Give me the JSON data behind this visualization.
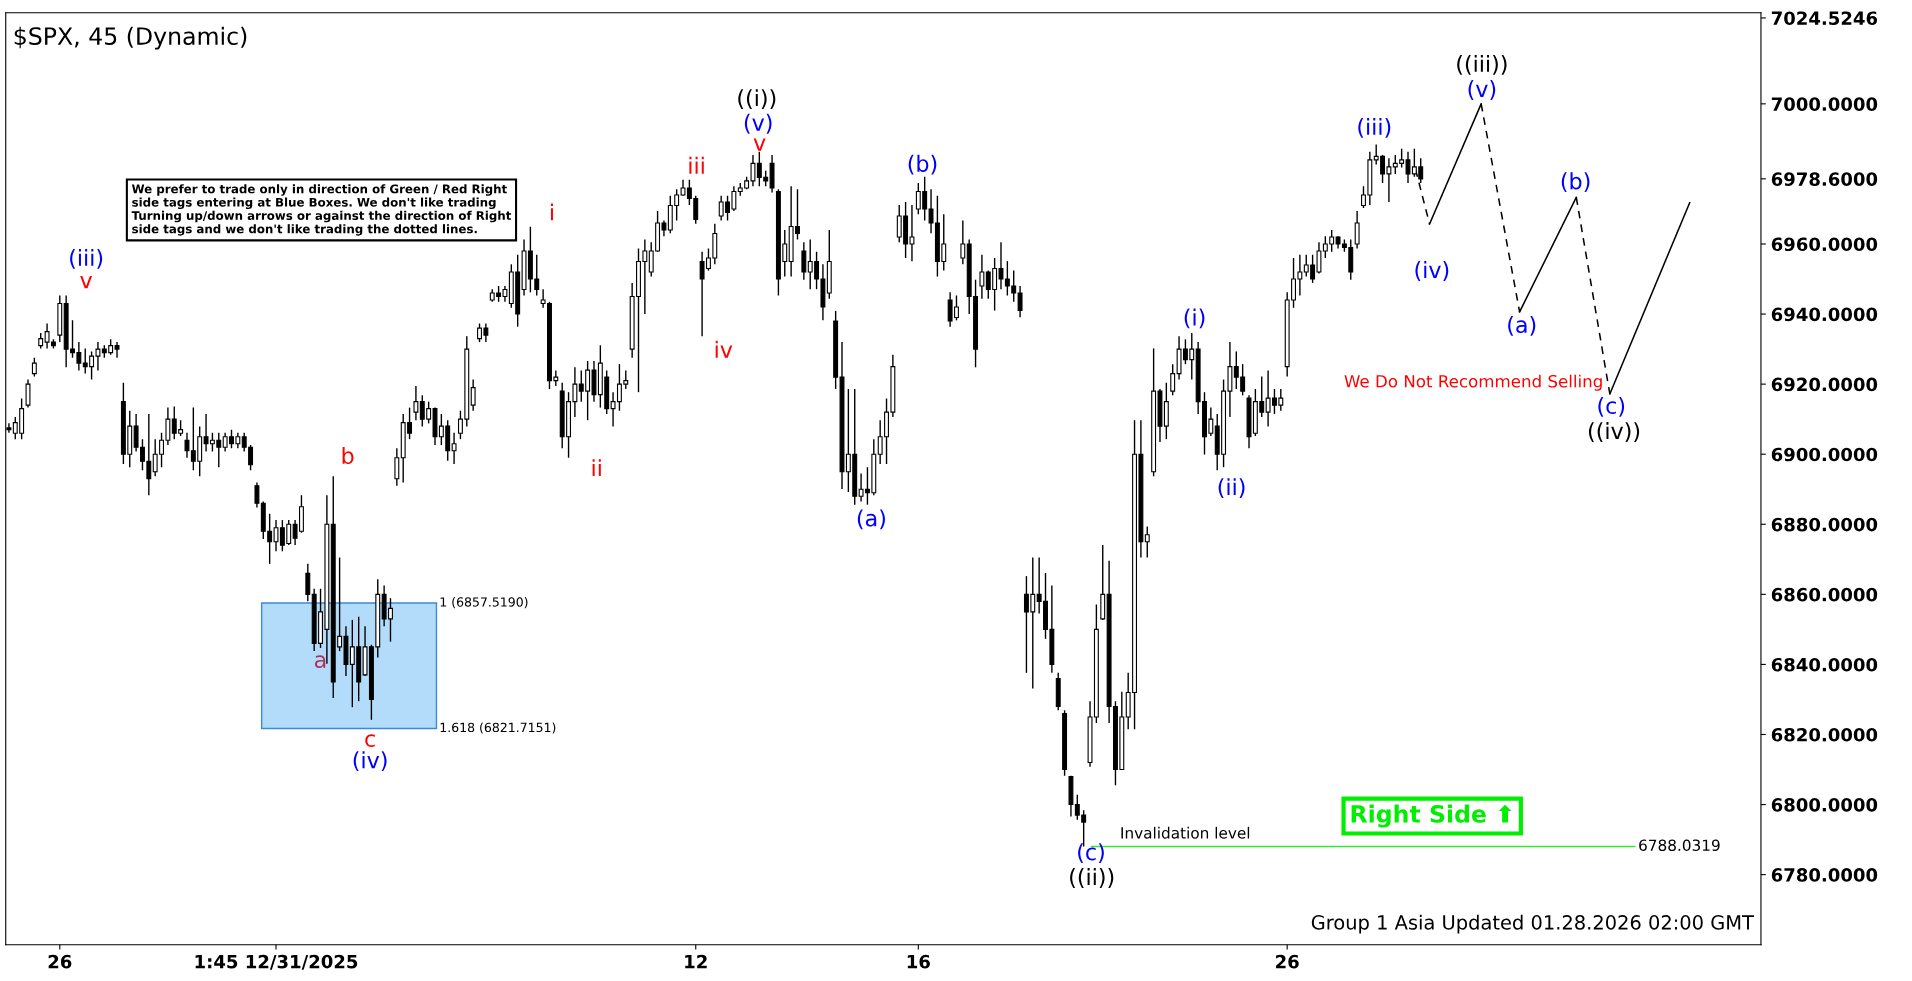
{
  "chart_data": {
    "type": "candlestick",
    "title": "$SPX, 45 (Dynamic)",
    "categories": [
      null,
      null,
      null,
      null,
      null,
      null,
      null,
      null,
      "26",
      null,
      null,
      null,
      null,
      null,
      null,
      null,
      null,
      null,
      null,
      null,
      null,
      null,
      null,
      null,
      null,
      null,
      null,
      null,
      null,
      null,
      null,
      null,
      null,
      null,
      null,
      null,
      null,
      null,
      null,
      null,
      null,
      null,
      "1:45 12/31/2025",
      null,
      null,
      null,
      null,
      null,
      null,
      null,
      null,
      null,
      null,
      null,
      null,
      null,
      null,
      null,
      null,
      null,
      null,
      null,
      null,
      null,
      null,
      null,
      null,
      null,
      null,
      null,
      null,
      null,
      null,
      null,
      null,
      null,
      null,
      null,
      null,
      null,
      null,
      null,
      null,
      null,
      null,
      null,
      null,
      null,
      null,
      null,
      null,
      null,
      null,
      null,
      null,
      null,
      null,
      null,
      null,
      null,
      null,
      null,
      null,
      null,
      null,
      null,
      null,
      null,
      "12",
      null,
      null,
      null,
      null,
      null,
      null,
      null,
      null,
      null,
      null,
      null,
      null,
      null,
      null,
      null,
      null,
      null,
      null,
      null,
      null,
      null,
      null,
      null,
      null,
      null,
      null,
      null,
      null,
      null,
      null,
      null,
      null,
      null,
      null,
      "16",
      null,
      null,
      null,
      null,
      null,
      null,
      null,
      null,
      null,
      null,
      null,
      null,
      null,
      null,
      null,
      null,
      null,
      null,
      null,
      null,
      null,
      null,
      null,
      null,
      null,
      null,
      null,
      null,
      null,
      null,
      null,
      null,
      null,
      null,
      null,
      null,
      null,
      null,
      null,
      null,
      null,
      null,
      null,
      null,
      null,
      null,
      null,
      null,
      null,
      null,
      null,
      null,
      null,
      null,
      null,
      null,
      null,
      "26",
      null,
      null,
      null,
      null,
      null,
      null,
      null,
      null,
      null,
      null,
      null,
      null,
      null,
      null,
      null,
      null,
      null,
      null,
      null,
      null,
      null,
      null,
      null,
      null,
      null,
      null,
      null,
      null,
      null,
      null,
      null,
      null,
      null,
      null,
      null,
      null,
      null,
      null,
      null,
      null,
      null,
      null,
      null,
      null,
      null,
      null,
      null,
      null,
      null,
      null,
      null,
      null,
      null,
      null,
      null,
      null,
      null,
      null,
      null,
      null,
      null,
      null,
      null,
      null,
      null,
      null,
      null,
      null,
      null,
      null,
      null,
      null,
      null,
      null
    ],
    "ohlc": [
      [
        6907.5,
        6908.8,
        6906.1,
        6907.0
      ],
      [
        6906.0,
        6910.6,
        6904.3,
        6909.0
      ],
      [
        6906.0,
        6915.9,
        6904.3,
        6913.0
      ],
      [
        6914.0,
        6921.3,
        6913.3,
        6920.0
      ],
      [
        6923.0,
        6927.5,
        6922.2,
        6926.0
      ],
      [
        6931.0,
        6934.6,
        6930.2,
        6933.0
      ],
      [
        6932.0,
        6937.3,
        6930.2,
        6935.0
      ],
      [
        6932.0,
        6932.8,
        6930.2,
        6931.0
      ],
      [
        6934.0,
        6945.3,
        6932.0,
        6943.0
      ],
      [
        6943.0,
        6945.3,
        6924.8,
        6930.0
      ],
      [
        6930.0,
        6938.2,
        6927.5,
        6929.0
      ],
      [
        6929.0,
        6932.0,
        6923.9,
        6926.0
      ],
      [
        6926.0,
        6930.2,
        6923.0,
        6925.0
      ],
      [
        6925.0,
        6929.3,
        6921.3,
        6928.0
      ],
      [
        6928.0,
        6932.0,
        6923.9,
        6930.0
      ],
      [
        6930.0,
        6931.1,
        6927.5,
        6929.0
      ],
      [
        6929.0,
        6932.8,
        6928.4,
        6931.0
      ],
      [
        6931.0,
        6932.0,
        6927.5,
        6930.0
      ],
      [
        6915.0,
        6920.4,
        6897.2,
        6900.0
      ],
      [
        6900.0,
        6912.4,
        6896.3,
        6908.0
      ],
      [
        6908.0,
        6911.5,
        6900.8,
        6902.0
      ],
      [
        6902.0,
        6904.3,
        6895.4,
        6898.0
      ],
      [
        6898.0,
        6911.5,
        6888.3,
        6893.0
      ],
      [
        6895.0,
        6904.3,
        6893.7,
        6900.0
      ],
      [
        6900.0,
        6906.1,
        6896.3,
        6904.0
      ],
      [
        6904.0,
        6913.3,
        6902.6,
        6910.0
      ],
      [
        6910.0,
        6913.6,
        6904.3,
        6906.0
      ],
      [
        6906.0,
        6909.7,
        6905.2,
        6907.0
      ],
      [
        6904.0,
        6906.1,
        6899.0,
        6901.0
      ],
      [
        6901.0,
        6913.3,
        6895.4,
        6898.0
      ],
      [
        6898.0,
        6907.9,
        6893.7,
        6905.0
      ],
      [
        6905.0,
        6911.5,
        6900.8,
        6903.0
      ],
      [
        6903.0,
        6906.1,
        6900.8,
        6904.0
      ],
      [
        6904.0,
        6906.1,
        6896.3,
        6902.0
      ],
      [
        6902.0,
        6906.1,
        6900.8,
        6905.0
      ],
      [
        6905.0,
        6907.0,
        6901.7,
        6903.0
      ],
      [
        6903.0,
        6906.1,
        6901.7,
        6905.0
      ],
      [
        6905.0,
        6906.1,
        6900.8,
        6902.0
      ],
      [
        6902.0,
        6902.6,
        6895.4,
        6897.0
      ],
      [
        6891.0,
        6891.9,
        6884.8,
        6886.0
      ],
      [
        6886.0,
        6886.5,
        6875.8,
        6878.0
      ],
      [
        6878.0,
        6883.0,
        6868.7,
        6875.0
      ],
      [
        6875.0,
        6881.2,
        6872.3,
        6879.0
      ],
      [
        6879.0,
        6881.2,
        6872.3,
        6874.0
      ],
      [
        6874.5,
        6881.2,
        6874.1,
        6880.0
      ],
      [
        6880.0,
        6881.2,
        6874.1,
        6876.0
      ],
      [
        6878.0,
        6888.3,
        6877.6,
        6885.0
      ],
      [
        6866.0,
        6868.7,
        6858.0,
        6860.0
      ],
      [
        6860.0,
        6861.6,
        6843.8,
        6846.0
      ],
      [
        6846.0,
        6861.6,
        6844.7,
        6855.0
      ],
      [
        6850.0,
        6888.3,
        6840.2,
        6880.0
      ],
      [
        6880.0,
        6893.7,
        6830.4,
        6835.0
      ],
      [
        6845.0,
        6870.5,
        6843.8,
        6848.0
      ],
      [
        6848.0,
        6850.9,
        6836.7,
        6840.0
      ],
      [
        6840.0,
        6852.7,
        6827.8,
        6845.0
      ],
      [
        6845.0,
        6853.6,
        6829.5,
        6835.0
      ],
      [
        6837.0,
        6850.9,
        6836.7,
        6845.0
      ],
      [
        6845.0,
        6845.6,
        6824.2,
        6830.0
      ],
      [
        6845.0,
        6864.3,
        6842.0,
        6860.0
      ],
      [
        6860.0,
        6862.5,
        6850.9,
        6853.0
      ],
      [
        6853.0,
        6858.9,
        6846.5,
        6856.0
      ],
      [
        6893.0,
        6901.7,
        6891.0,
        6899.0
      ],
      [
        6899.0,
        6911.5,
        6891.9,
        6909.0
      ],
      [
        6909.0,
        6913.3,
        6904.3,
        6906.0
      ],
      [
        6912.0,
        6919.5,
        6909.7,
        6915.0
      ],
      [
        6915.0,
        6916.8,
        6907.9,
        6910.0
      ],
      [
        6910.0,
        6915.0,
        6908.8,
        6913.0
      ],
      [
        6913.0,
        6913.3,
        6902.6,
        6905.0
      ],
      [
        6905.0,
        6911.5,
        6902.6,
        6908.0
      ],
      [
        6908.0,
        6909.7,
        6898.1,
        6901.0
      ],
      [
        6901.0,
        6906.1,
        6897.2,
        6903.0
      ],
      [
        6906.0,
        6912.4,
        6904.3,
        6910.0
      ],
      [
        6910.0,
        6933.7,
        6907.9,
        6930.0
      ],
      [
        6914.0,
        6921.3,
        6912.4,
        6919.0
      ],
      [
        6933.0,
        6937.3,
        6932.0,
        6936.0
      ],
      [
        6936.0,
        6937.3,
        6932.0,
        6934.0
      ],
      [
        6944.0,
        6947.1,
        6943.5,
        6946.0
      ],
      [
        6946.0,
        6948.0,
        6943.5,
        6945.0
      ],
      [
        6945.0,
        6948.0,
        6943.5,
        6947.0
      ],
      [
        6943.0,
        6954.2,
        6941.8,
        6952.0
      ],
      [
        6952.0,
        6956.9,
        6936.4,
        6940.0
      ],
      [
        6947.0,
        6961.3,
        6945.3,
        6958.0
      ],
      [
        6958.0,
        6964.9,
        6946.2,
        6950.0
      ],
      [
        6950.0,
        6956.9,
        6945.3,
        6947.0
      ],
      [
        6943.0,
        6947.1,
        6941.8,
        6944.0
      ],
      [
        6943.0,
        6943.5,
        6918.6,
        6921.0
      ],
      [
        6921.0,
        6923.9,
        6919.5,
        6922.0
      ],
      [
        6918.0,
        6920.4,
        6901.7,
        6905.0
      ],
      [
        6905.0,
        6917.7,
        6899.0,
        6915.0
      ],
      [
        6915.0,
        6924.8,
        6910.6,
        6920.0
      ],
      [
        6920.0,
        6923.9,
        6915.0,
        6918.0
      ],
      [
        6918.0,
        6926.6,
        6909.7,
        6924.0
      ],
      [
        6924.0,
        6926.6,
        6915.0,
        6917.0
      ],
      [
        6917.0,
        6931.1,
        6913.3,
        6926.0
      ],
      [
        6922.0,
        6923.9,
        6911.5,
        6913.0
      ],
      [
        6913.0,
        6917.7,
        6907.9,
        6915.0
      ],
      [
        6915.0,
        6925.7,
        6912.4,
        6920.0
      ],
      [
        6920.0,
        6923.9,
        6918.6,
        6921.0
      ],
      [
        6930.0,
        6948.9,
        6927.5,
        6945.0
      ],
      [
        6945.0,
        6958.7,
        6917.7,
        6955.0
      ],
      [
        6955.0,
        6961.3,
        6940.0,
        6958.0
      ],
      [
        6952.0,
        6960.5,
        6950.7,
        6958.0
      ],
      [
        6958.0,
        6969.4,
        6957.8,
        6966.0
      ],
      [
        6966.0,
        6966.7,
        6962.2,
        6964.0
      ],
      [
        6964.0,
        6973.8,
        6963.1,
        6971.0
      ],
      [
        6971.0,
        6975.6,
        6966.7,
        6974.0
      ],
      [
        6974.0,
        6978.3,
        6973.8,
        6976.0
      ],
      [
        6976.0,
        6978.3,
        6971.1,
        6973.0
      ],
      [
        6973.0,
        6973.8,
        6965.8,
        6967.0
      ],
      [
        6955.0,
        6957.8,
        6933.7,
        6950.0
      ],
      [
        6953.0,
        6958.7,
        6952.4,
        6956.0
      ],
      [
        6956.0,
        6965.8,
        6954.2,
        6963.0
      ],
      [
        6968.0,
        6973.8,
        6966.7,
        6972.0
      ],
      [
        6972.0,
        6973.8,
        6966.7,
        6969.0
      ],
      [
        6970.0,
        6976.5,
        6969.4,
        6975.0
      ],
      [
        6975.0,
        6977.4,
        6973.8,
        6976.0
      ],
      [
        6976.0,
        6979.2,
        6975.6,
        6978.0
      ],
      [
        6978.0,
        6985.4,
        6976.5,
        6983.0
      ],
      [
        6983.0,
        6986.3,
        6976.5,
        6979.0
      ],
      [
        6979.0,
        6980.9,
        6976.5,
        6978.0
      ],
      [
        6983.0,
        6985.4,
        6974.7,
        6976.0
      ],
      [
        6975.0,
        6975.6,
        6945.3,
        6950.0
      ],
      [
        6955.0,
        6964.0,
        6950.7,
        6960.0
      ],
      [
        6955.0,
        6976.5,
        6950.7,
        6965.0
      ],
      [
        6965.0,
        6975.6,
        6961.3,
        6963.0
      ],
      [
        6958.0,
        6960.5,
        6949.8,
        6952.0
      ],
      [
        6952.0,
        6961.3,
        6947.1,
        6955.0
      ],
      [
        6955.0,
        6957.8,
        6947.1,
        6950.0
      ],
      [
        6950.0,
        6954.2,
        6938.2,
        6942.0
      ],
      [
        6946.0,
        6964.0,
        6944.4,
        6955.0
      ],
      [
        6938.0,
        6940.9,
        6918.6,
        6922.0
      ],
      [
        6922.0,
        6932.0,
        6890.1,
        6895.0
      ],
      [
        6895.0,
        6918.6,
        6889.2,
        6900.0
      ],
      [
        6900.0,
        6918.6,
        6885.6,
        6888.0
      ],
      [
        6888.0,
        6894.5,
        6886.5,
        6890.0
      ],
      [
        6890.0,
        6896.3,
        6885.6,
        6889.0
      ],
      [
        6889.0,
        6904.3,
        6888.3,
        6900.0
      ],
      [
        6900.0,
        6909.7,
        6897.2,
        6905.0
      ],
      [
        6905.0,
        6915.9,
        6897.2,
        6912.0
      ],
      [
        6912.0,
        6928.4,
        6910.6,
        6925.0
      ],
      [
        6962.0,
        6971.1,
        6960.5,
        6968.0
      ],
      [
        6968.0,
        6972.0,
        6956.0,
        6960.0
      ],
      [
        6960.0,
        6971.1,
        6955.1,
        6962.0
      ],
      [
        6970.0,
        6977.4,
        6968.5,
        6975.0
      ],
      [
        6975.0,
        6979.2,
        6966.7,
        6970.0
      ],
      [
        6970.0,
        6975.6,
        6963.1,
        6966.0
      ],
      [
        6966.0,
        6973.8,
        6950.7,
        6955.0
      ],
      [
        6955.0,
        6968.5,
        6952.4,
        6960.0
      ],
      [
        6944.0,
        6946.2,
        6936.4,
        6938.0
      ],
      [
        6939.0,
        6945.3,
        6938.2,
        6942.0
      ],
      [
        6956.0,
        6966.7,
        6954.2,
        6960.0
      ],
      [
        6960.0,
        6961.3,
        6940.0,
        6945.0
      ],
      [
        6945.0,
        6949.8,
        6924.8,
        6930.0
      ],
      [
        6948.0,
        6956.9,
        6944.4,
        6952.0
      ],
      [
        6952.0,
        6952.4,
        6944.4,
        6947.0
      ],
      [
        6947.0,
        6956.0,
        6941.0,
        6953.0
      ],
      [
        6953.0,
        6960.5,
        6947.1,
        6950.0
      ],
      [
        6950.0,
        6955.1,
        6945.3,
        6948.0
      ],
      [
        6948.0,
        6952.4,
        6943.5,
        6946.0
      ],
      [
        6946.0,
        6948.0,
        6939.1,
        6941.0
      ],
      [
        6860.0,
        6865.2,
        6837.6,
        6855.0
      ],
      [
        6855.0,
        6870.5,
        6833.1,
        6860.0
      ],
      [
        6860.0,
        6870.5,
        6854.5,
        6858.0
      ],
      [
        6858.0,
        6866.1,
        6847.3,
        6850.0
      ],
      [
        6850.0,
        6862.5,
        6837.6,
        6840.0
      ],
      [
        6836.0,
        6837.6,
        6826.9,
        6828.0
      ],
      [
        6826.0,
        6826.9,
        6808.2,
        6810.0
      ],
      [
        6808.0,
        6808.2,
        6796.6,
        6800.0
      ],
      [
        6800.0,
        6802.8,
        6795.7,
        6797.0
      ],
      [
        6797.0,
        6798.4,
        6788.0,
        6795.0
      ],
      [
        6812.0,
        6829.5,
        6810.8,
        6825.0
      ],
      [
        6825.0,
        6857.1,
        6823.3,
        6850.0
      ],
      [
        6853.0,
        6874.1,
        6852.7,
        6860.0
      ],
      [
        6860.0,
        6869.6,
        6823.3,
        6828.0
      ],
      [
        6828.0,
        6829.5,
        6805.5,
        6810.0
      ],
      [
        6810.0,
        6832.2,
        6809.9,
        6825.0
      ],
      [
        6825.0,
        6837.6,
        6821.5,
        6832.0
      ],
      [
        6832.0,
        6909.7,
        6821.5,
        6900.0
      ],
      [
        6900.0,
        6909.7,
        6870.5,
        6875.0
      ],
      [
        6875.0,
        6879.4,
        6870.5,
        6877.0
      ],
      [
        6895.0,
        6930.2,
        6893.7,
        6918.0
      ],
      [
        6918.0,
        6918.6,
        6903.5,
        6908.0
      ],
      [
        6908.0,
        6920.4,
        6904.3,
        6915.0
      ],
      [
        6918.0,
        6925.7,
        6916.8,
        6923.0
      ],
      [
        6923.0,
        6933.7,
        6921.3,
        6930.0
      ],
      [
        6930.0,
        6932.8,
        6925.7,
        6927.0
      ],
      [
        6927.0,
        6934.6,
        6921.3,
        6930.0
      ],
      [
        6930.0,
        6932.0,
        6911.5,
        6915.0
      ],
      [
        6915.0,
        6917.7,
        6899.9,
        6905.0
      ],
      [
        6906.0,
        6913.3,
        6905.2,
        6910.0
      ],
      [
        6908.0,
        6911.5,
        6895.4,
        6900.0
      ],
      [
        6900.0,
        6921.3,
        6896.3,
        6918.0
      ],
      [
        6918.0,
        6932.0,
        6910.6,
        6925.0
      ],
      [
        6925.0,
        6929.3,
        6918.6,
        6922.0
      ],
      [
        6922.0,
        6925.7,
        6916.8,
        6918.0
      ],
      [
        6916.0,
        6916.8,
        6901.7,
        6905.0
      ],
      [
        6906.0,
        6918.6,
        6905.2,
        6915.0
      ],
      [
        6915.0,
        6922.2,
        6910.6,
        6912.0
      ],
      [
        6912.0,
        6923.9,
        6907.9,
        6916.0
      ],
      [
        6916.0,
        6918.6,
        6911.5,
        6914.0
      ],
      [
        6914.0,
        6918.6,
        6912.4,
        6916.0
      ],
      [
        6925.0,
        6946.2,
        6922.2,
        6944.0
      ],
      [
        6944.0,
        6956.0,
        6941.8,
        6950.0
      ],
      [
        6950.0,
        6956.9,
        6945.3,
        6952.0
      ],
      [
        6952.0,
        6956.9,
        6950.7,
        6954.0
      ],
      [
        6954.0,
        6956.9,
        6948.9,
        6950.0
      ],
      [
        6952.0,
        6960.5,
        6951.6,
        6958.0
      ],
      [
        6958.0,
        6962.2,
        6956.0,
        6960.0
      ],
      [
        6960.0,
        6964.0,
        6957.8,
        6962.0
      ],
      [
        6962.0,
        6962.2,
        6958.7,
        6960.0
      ],
      [
        6960.0,
        6961.3,
        6957.8,
        6959.0
      ],
      [
        6959.0,
        6961.3,
        6949.8,
        6952.0
      ],
      [
        6960.0,
        6969.4,
        6958.7,
        6966.0
      ],
      [
        6971.0,
        6976.5,
        6970.3,
        6974.0
      ],
      [
        6974.0,
        6986.3,
        6971.1,
        6984.0
      ],
      [
        6984.0,
        6988.4,
        6982.7,
        6985.0
      ],
      [
        6985.0,
        6985.4,
        6977.4,
        6980.0
      ],
      [
        6980.0,
        6984.5,
        6972.0,
        6982.0
      ],
      [
        6982.0,
        6985.4,
        6980.0,
        6983.0
      ],
      [
        6983.0,
        6987.2,
        6981.8,
        6984.0
      ],
      [
        6984.0,
        6986.3,
        6977.4,
        6980.0
      ],
      [
        6980.0,
        6987.2,
        6979.2,
        6982.0
      ],
      [
        6982.0,
        6984.5,
        6977.4,
        6978.6
      ],
      null,
      null,
      null,
      null,
      null,
      null,
      null,
      null,
      null,
      null,
      null,
      null,
      null,
      null,
      null,
      null,
      null,
      null,
      null,
      null,
      null,
      null,
      null,
      null,
      null,
      null,
      null,
      null,
      null,
      null,
      null,
      null,
      null,
      null,
      null,
      null,
      null,
      null,
      null,
      null,
      null,
      null,
      null,
      null,
      null,
      null,
      null,
      null,
      null,
      null,
      null,
      null,
      null
    ],
    "color": "#000000",
    "bands": [
      {
        "axis": "y",
        "from": 6821.7151,
        "to": 6857.519,
        "color": "#b3dcfa"
      }
    ],
    "ref_lines": [
      {
        "axis": "y",
        "value": 6788.0319,
        "label": "Invalidation level",
        "color": "#33e833"
      }
    ],
    "ylim": [
      6760,
      7026
    ],
    "yticks": [
      {
        "value": 6780,
        "label": "6780.0000"
      },
      {
        "value": 6800,
        "label": "6800.0000"
      },
      {
        "value": 6820,
        "label": "6820.0000"
      },
      {
        "value": 6840,
        "label": "6840.0000"
      },
      {
        "value": 6860,
        "label": "6860.0000"
      },
      {
        "value": 6880,
        "label": "6880.0000"
      },
      {
        "value": 6900,
        "label": "6900.0000"
      },
      {
        "value": 6920,
        "label": "6920.0000"
      },
      {
        "value": 6940,
        "label": "6940.0000"
      },
      {
        "value": 6960,
        "label": "6960.0000"
      },
      {
        "value": 6978.6,
        "label": "6978.6000"
      },
      {
        "value": 7000,
        "label": "7000.0000"
      },
      {
        "value": 7024.5246,
        "label": "7024.5246"
      }
    ],
    "grid": false,
    "legend": false,
    "annotations": [
      "We prefer to trade only in direction of Green / Red Right\nside tags entering at Blue Boxes. We don't like trading\nTurning up/down arrows or against the direction of Right\nside tags and we don't like trading the dotted lines.",
      "(iii)",
      "v",
      "b",
      "a",
      "c",
      "(iv)",
      "1 (6857.5190)",
      "1.618 (6821.7151)",
      "i",
      "ii",
      "iii",
      "iv",
      "((i))",
      "(v)",
      "v",
      "(a)",
      "(b)",
      "(c)",
      "((ii))",
      "(i)",
      "(ii)",
      "(iii)",
      "(iv)",
      "((iii))",
      "(v)",
      "(a)",
      "(b)",
      "(c)",
      "((iv))",
      "We Do Not Recommend Selling",
      "6788.0319",
      "Right Side ⬆",
      "Group 1 Asia Updated 01.28.2026 02:00 GMT"
    ]
  }
}
